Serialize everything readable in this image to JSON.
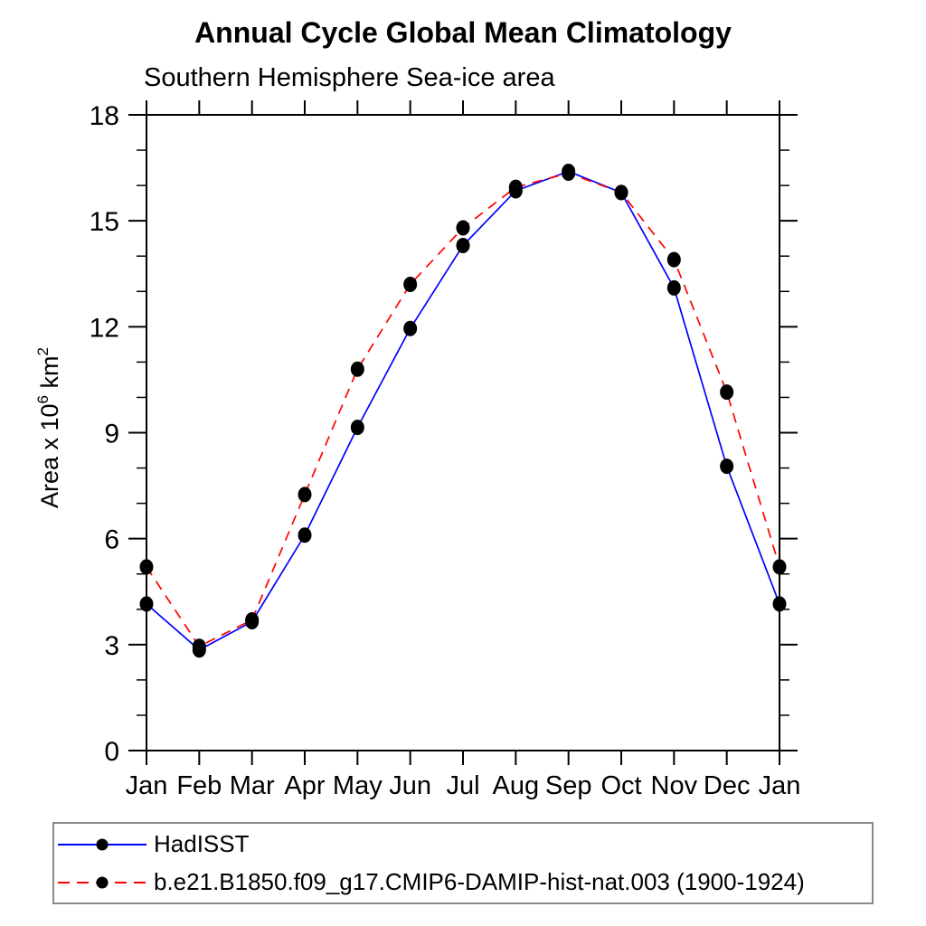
{
  "chart_data": {
    "type": "line",
    "title": "Annual Cycle Global Mean Climatology",
    "subtitle": "Southern Hemisphere Sea-ice area",
    "ylabel": "Area x 10⁶ km²",
    "ylabel_parts": [
      {
        "text": "Area x 10",
        "sup": false
      },
      {
        "text": "6",
        "sup": true
      },
      {
        "text": " km",
        "sup": false
      },
      {
        "text": "2",
        "sup": true
      }
    ],
    "categories": [
      "Jan",
      "Feb",
      "Mar",
      "Apr",
      "May",
      "Jun",
      "Jul",
      "Aug",
      "Sep",
      "Oct",
      "Nov",
      "Dec",
      "Jan"
    ],
    "ylim": [
      0,
      18
    ],
    "yticks_major": [
      0,
      3,
      6,
      9,
      12,
      15,
      18
    ],
    "ytick_minor_step": 1,
    "grid": false,
    "legend_position": "bottom",
    "axis_color": "#000000",
    "marker_color": "#000000",
    "series": [
      {
        "name": "HadISST",
        "color": "#0000ff",
        "style": "solid",
        "marker": "filled-circle",
        "values": [
          4.15,
          2.85,
          3.65,
          6.1,
          9.15,
          11.95,
          14.3,
          15.85,
          16.4,
          15.8,
          13.1,
          8.05,
          4.15
        ]
      },
      {
        "name": "b.e21.B1850.f09_g17.CMIP6-DAMIP-hist-nat.003 (1900-1924)",
        "color": "#ff0000",
        "style": "dashed",
        "marker": "filled-circle",
        "values": [
          5.2,
          2.95,
          3.7,
          7.25,
          10.8,
          13.2,
          14.8,
          15.95,
          16.35,
          15.8,
          13.9,
          10.15,
          5.2
        ]
      }
    ]
  }
}
